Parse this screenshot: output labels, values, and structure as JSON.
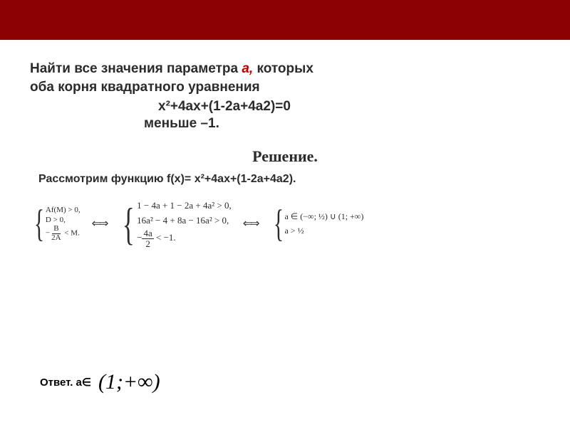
{
  "colors": {
    "banner_bg": "#8b0000",
    "page_bg": "#ffffff",
    "text": "#2b2b2b",
    "accent": "#c00000"
  },
  "typography": {
    "body_family": "Arial",
    "math_family": "Times New Roman",
    "problem_fontsize_pt": 14,
    "solution_title_fontsize_pt": 16,
    "system_fontsize_pt": 9,
    "answer_interval_fontsize_pt": 22
  },
  "problem": {
    "line1_pre": "Найти все значения параметра ",
    "param_letter": "а,",
    "line1_post": " которых",
    "line2": "оба корня квадратного уравнения",
    "equation": "х²+4ах+(1-2а+4а2)=0",
    "condition": "меньше –1."
  },
  "solution": {
    "title": "Решение.",
    "consider": "Рассмотрим функцию f(x)= х²+4ах+(1-2а+4а2)."
  },
  "systems": {
    "left": {
      "r1": "Af(M) > 0,",
      "r2": "D > 0,",
      "r3_lhs_num": "B",
      "r3_lhs_den": "2A",
      "r3_neg": "−",
      "r3_tail": " < M."
    },
    "middle": {
      "r1": "1 − 4a + 1 − 2a + 4a² > 0,",
      "r2": "16a² − 4 + 8a − 16a² > 0,",
      "r3_neg": "−",
      "r3_num": "4a",
      "r3_den": "2",
      "r3_tail": " < −1."
    },
    "right": {
      "r1_pre": "a ∈ ",
      "r1_interval": "(−∞; ½) ∪ (1; +∞)",
      "r2": "a > ½"
    },
    "arrow_glyph": "⇐⇒"
  },
  "answer": {
    "label": "Ответ. a∈",
    "interval": "(1;+∞)"
  }
}
